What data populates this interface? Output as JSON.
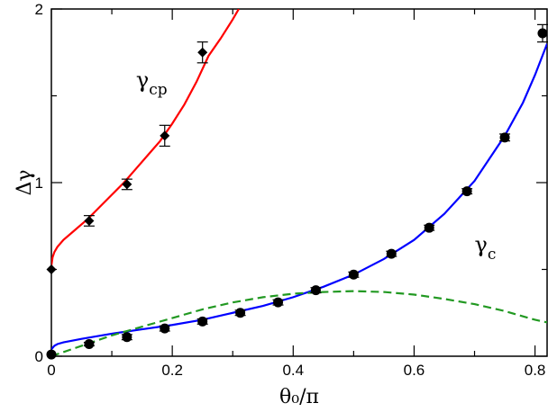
{
  "chart_data": {
    "type": "scatter",
    "xlabel": "θ₀/π",
    "ylabel": "Δγ",
    "xlim": [
      0,
      0.82
    ],
    "ylim": [
      0,
      2
    ],
    "x_ticks": [
      0,
      0.2,
      0.4,
      0.6,
      0.8
    ],
    "x_tick_labels": [
      "0",
      "0.2",
      "0.4",
      "0.6",
      "0.8"
    ],
    "y_ticks": [
      0,
      1,
      2
    ],
    "y_tick_labels": [
      "0",
      "1",
      "2"
    ],
    "grid": false,
    "legend": "none",
    "annotations": [
      {
        "text": "γ",
        "sub": "cp",
        "x": 0.14,
        "y": 1.55
      },
      {
        "text": "γ",
        "sub": "c",
        "x": 0.7,
        "y": 0.6
      }
    ],
    "series": [
      {
        "kind": "points",
        "marker": "diamond",
        "color": "#000000",
        "points": [
          {
            "x": 0,
            "y": 0.5,
            "err": 0
          },
          {
            "x": 0.0625,
            "y": 0.78,
            "err": 0.03
          },
          {
            "x": 0.125,
            "y": 0.99,
            "err": 0.03
          },
          {
            "x": 0.1875,
            "y": 1.27,
            "err": 0.06
          },
          {
            "x": 0.25,
            "y": 1.75,
            "err": 0.06
          }
        ]
      },
      {
        "kind": "points",
        "marker": "circle",
        "color": "#000000",
        "points": [
          {
            "x": 0,
            "y": 0.01,
            "err": 0
          },
          {
            "x": 0.0625,
            "y": 0.07,
            "err": 0.01
          },
          {
            "x": 0.125,
            "y": 0.11,
            "err": 0.015
          },
          {
            "x": 0.1875,
            "y": 0.16,
            "err": 0.015
          },
          {
            "x": 0.25,
            "y": 0.2,
            "err": 0.015
          },
          {
            "x": 0.3125,
            "y": 0.25,
            "err": 0.015
          },
          {
            "x": 0.375,
            "y": 0.31,
            "err": 0.015
          },
          {
            "x": 0.4375,
            "y": 0.38,
            "err": 0.015
          },
          {
            "x": 0.5,
            "y": 0.47,
            "err": 0.015
          },
          {
            "x": 0.5625,
            "y": 0.59,
            "err": 0.015
          },
          {
            "x": 0.625,
            "y": 0.74,
            "err": 0.015
          },
          {
            "x": 0.6875,
            "y": 0.95,
            "err": 0.015
          },
          {
            "x": 0.75,
            "y": 1.26,
            "err": 0.02
          },
          {
            "x": 0.8125,
            "y": 1.86,
            "err": 0.05
          }
        ]
      },
      {
        "kind": "line",
        "color": "#ff0000",
        "style": "solid",
        "x": [
          0,
          0.002,
          0.005,
          0.01,
          0.02,
          0.04,
          0.06,
          0.08,
          0.1,
          0.12,
          0.14,
          0.16,
          0.18,
          0.2,
          0.22,
          0.24,
          0.26,
          0.28,
          0.3,
          0.31
        ],
        "y": [
          0.52,
          0.57,
          0.6,
          0.63,
          0.67,
          0.73,
          0.79,
          0.86,
          0.93,
          1.0,
          1.08,
          1.16,
          1.24,
          1.34,
          1.45,
          1.58,
          1.73,
          1.83,
          1.94,
          2.0
        ]
      },
      {
        "kind": "line",
        "color": "#0000ff",
        "style": "solid",
        "x": [
          0,
          0.005,
          0.01,
          0.02,
          0.05,
          0.1,
          0.15,
          0.2,
          0.25,
          0.3,
          0.35,
          0.4,
          0.45,
          0.5,
          0.55,
          0.6,
          0.65,
          0.7,
          0.75,
          0.78,
          0.8,
          0.82
        ],
        "y": [
          0.04,
          0.06,
          0.07,
          0.08,
          0.1,
          0.13,
          0.155,
          0.18,
          0.21,
          0.25,
          0.29,
          0.34,
          0.4,
          0.47,
          0.56,
          0.67,
          0.82,
          1.01,
          1.27,
          1.46,
          1.62,
          1.8
        ]
      },
      {
        "kind": "line",
        "color": "#229922",
        "style": "dashed",
        "x": [
          0,
          0.05,
          0.1,
          0.15,
          0.2,
          0.25,
          0.3,
          0.35,
          0.4,
          0.45,
          0.5,
          0.55,
          0.6,
          0.65,
          0.7,
          0.75,
          0.8,
          0.82
        ],
        "y": [
          0.0,
          0.06,
          0.12,
          0.17,
          0.22,
          0.27,
          0.31,
          0.34,
          0.36,
          0.37,
          0.375,
          0.37,
          0.355,
          0.33,
          0.3,
          0.26,
          0.21,
          0.195
        ]
      }
    ]
  }
}
